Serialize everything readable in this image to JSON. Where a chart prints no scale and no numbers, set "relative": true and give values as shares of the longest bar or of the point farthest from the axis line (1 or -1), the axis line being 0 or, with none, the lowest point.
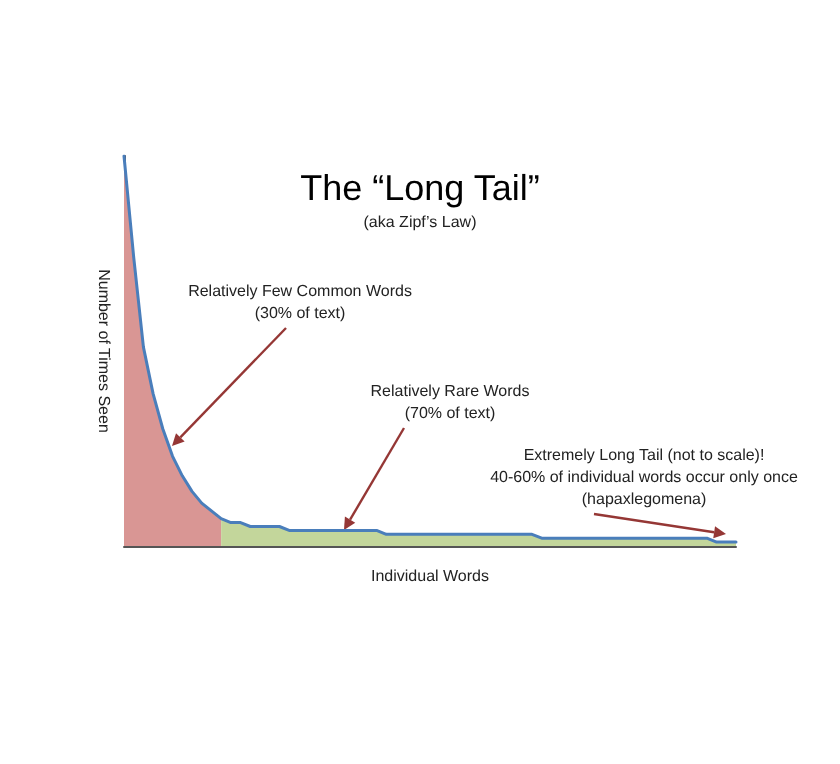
{
  "chart_data": {
    "type": "area",
    "relative": true,
    "title": "The “Long Tail”",
    "subtitle": "(aka Zipf’s Law)",
    "xlabel": "Individual Words",
    "ylabel": "Number of Times Seen",
    "annotations": [
      "Relatively Few Common Words\n(30% of text)",
      "Relatively Rare Words\n(70% of text)",
      "Extremely Long Tail (not to scale)!\n40-60% of individual words occur only once\n(hapaxlegomena)"
    ],
    "categories": [
      null,
      null,
      null,
      null,
      null,
      null,
      null,
      null,
      null,
      null,
      null,
      null,
      null,
      null,
      null,
      null,
      null,
      null,
      null,
      null,
      null,
      null,
      null,
      null,
      null,
      null,
      null,
      null,
      null,
      null,
      null,
      null,
      null,
      null,
      null,
      null,
      null,
      null,
      null,
      null,
      null,
      null,
      null,
      null,
      null,
      null,
      null,
      null,
      null,
      null,
      null,
      null,
      null,
      null,
      null,
      null,
      null,
      null,
      null,
      null,
      null,
      null,
      null,
      null
    ],
    "series": [
      {
        "color": "#d99694",
        "values": [
          1,
          0.74,
          0.51,
          0.39,
          0.3,
          0.23,
          0.18,
          0.14,
          0.11,
          0.09,
          0.07,
          null,
          null,
          null,
          null,
          null,
          null,
          null,
          null,
          null,
          null,
          null,
          null,
          null,
          null,
          null,
          null,
          null,
          null,
          null,
          null,
          null,
          null,
          null,
          null,
          null,
          null,
          null,
          null,
          null,
          null,
          null,
          null,
          null,
          null,
          null,
          null,
          null,
          null,
          null,
          null,
          null,
          null,
          null,
          null,
          null,
          null,
          null,
          null,
          null,
          null,
          null,
          null,
          null
        ]
      },
      {
        "color": "#c3d69b",
        "values": [
          null,
          null,
          null,
          null,
          null,
          null,
          null,
          null,
          null,
          null,
          0.07,
          0.06,
          0.06,
          0.05,
          0.05,
          0.05,
          0.05,
          0.04,
          0.04,
          0.04,
          0.04,
          0.04,
          0.04,
          0.04,
          0.04,
          0.04,
          0.04,
          0.03,
          0.03,
          0.03,
          0.03,
          0.03,
          0.03,
          0.03,
          0.03,
          0.03,
          0.03,
          0.03,
          0.03,
          0.03,
          0.03,
          0.03,
          0.03,
          0.02,
          0.02,
          0.02,
          0.02,
          0.02,
          0.02,
          0.02,
          0.02,
          0.02,
          0.02,
          0.02,
          0.02,
          0.02,
          0.02,
          0.02,
          0.02,
          0.02,
          0.02,
          0.01,
          0.01,
          0.01
        ]
      },
      {
        "type": "line",
        "color": "#4a7ebb",
        "values": [
          1,
          0.74,
          0.51,
          0.39,
          0.3,
          0.23,
          0.18,
          0.14,
          0.11,
          0.09,
          0.07,
          0.06,
          0.06,
          0.05,
          0.05,
          0.05,
          0.05,
          0.04,
          0.04,
          0.04,
          0.04,
          0.04,
          0.04,
          0.04,
          0.04,
          0.04,
          0.04,
          0.03,
          0.03,
          0.03,
          0.03,
          0.03,
          0.03,
          0.03,
          0.03,
          0.03,
          0.03,
          0.03,
          0.03,
          0.03,
          0.03,
          0.03,
          0.03,
          0.02,
          0.02,
          0.02,
          0.02,
          0.02,
          0.02,
          0.02,
          0.02,
          0.02,
          0.02,
          0.02,
          0.02,
          0.02,
          0.02,
          0.02,
          0.02,
          0.02,
          0.02,
          0.01,
          0.01,
          0.01
        ]
      }
    ]
  }
}
